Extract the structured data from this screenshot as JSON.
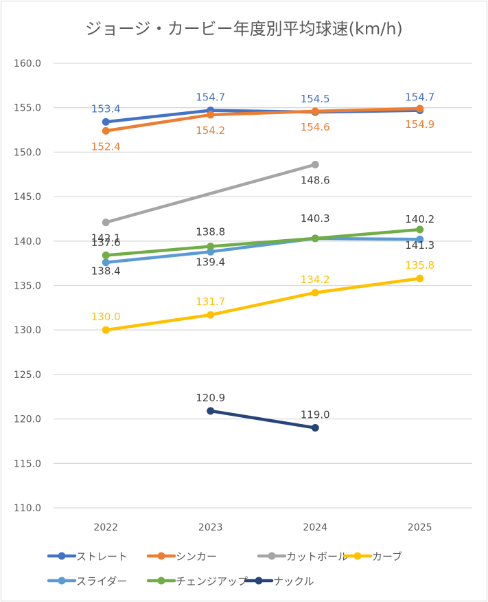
{
  "chart_data": {
    "type": "line",
    "title": "ジョージ・カービー年度別平均球速(km/h)",
    "xlabel": "",
    "ylabel": "",
    "categories": [
      "2022",
      "2023",
      "2024",
      "2025"
    ],
    "ylim": [
      110.0,
      160.0
    ],
    "y_ticks": [
      "110.0",
      "115.0",
      "120.0",
      "125.0",
      "130.0",
      "135.0",
      "140.0",
      "145.0",
      "150.0",
      "155.0",
      "160.0"
    ],
    "grid": "horizontal",
    "legend_position": "bottom",
    "series": [
      {
        "name": "ストレート",
        "color": "#4472C4",
        "values": [
          153.4,
          154.7,
          154.5,
          154.7
        ],
        "labels": [
          "153.4",
          "154.7",
          "154.5",
          "154.7"
        ],
        "label_pos": "above"
      },
      {
        "name": "シンカー",
        "color": "#ED7D31",
        "values": [
          152.4,
          154.2,
          154.6,
          154.9
        ],
        "labels": [
          "152.4",
          "154.2",
          "154.6",
          "154.9"
        ],
        "label_pos": "below"
      },
      {
        "name": "カットボール",
        "color": "#A5A5A5",
        "values": [
          142.1,
          null,
          148.6,
          null
        ],
        "labels": [
          "142.1",
          null,
          "148.6",
          null
        ],
        "label_pos": "below",
        "connect_gaps": true
      },
      {
        "name": "カーブ",
        "color": "#FFC000",
        "values": [
          130.0,
          131.7,
          134.2,
          135.8
        ],
        "labels": [
          "130.0",
          "131.7",
          "134.2",
          "135.8"
        ],
        "label_pos": "above"
      },
      {
        "name": "スライダー",
        "color": "#5B9BD5",
        "values": [
          137.6,
          138.8,
          140.3,
          140.2
        ],
        "labels": [
          "137.6",
          "138.8",
          "140.3",
          "140.2"
        ],
        "label_pos": "above_fixed"
      },
      {
        "name": "チェンジアップ",
        "color": "#70AD47",
        "values": [
          138.4,
          139.4,
          140.3,
          141.3
        ],
        "labels": [
          "138.4",
          "139.4",
          null,
          "141.3"
        ],
        "label_pos": "below_fixed"
      },
      {
        "name": "ナックル",
        "color": "#264478",
        "values": [
          null,
          120.9,
          119.0,
          null
        ],
        "labels": [
          null,
          "120.9",
          "119.0",
          null
        ],
        "label_pos": "above"
      }
    ]
  }
}
